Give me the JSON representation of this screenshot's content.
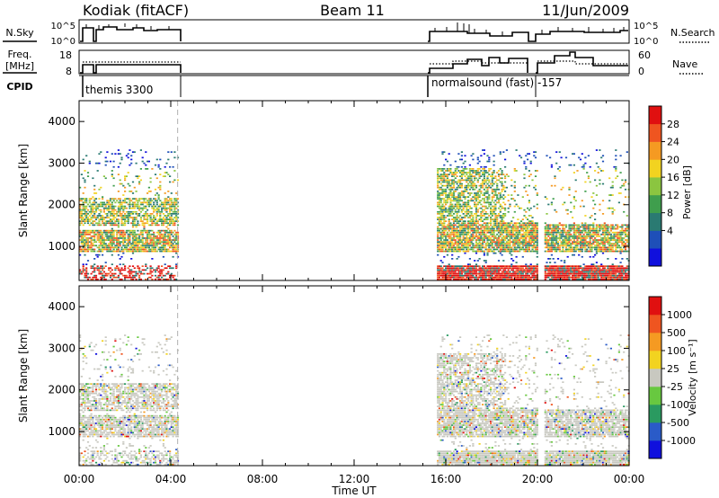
{
  "header": {
    "station": "Kodiak (fitACF)",
    "beam": "Beam 11",
    "date": "11/Jun/2009"
  },
  "colors": {
    "scatter_gray": "#c8c8c0",
    "ground_red": "#e01010",
    "text": "#000000",
    "gap_dash": "#b0b0b0"
  },
  "top_panels": {
    "nsky": {
      "left_label": "N.Sky",
      "left_ticks": [
        "10^5",
        "10^0"
      ],
      "right_ticks": [
        "10^5",
        "10^0"
      ],
      "right_label": "N.Search"
    },
    "freq": {
      "left_label_1": "Freq.",
      "left_label_2": "[MHz]",
      "left_ticks": [
        "18",
        "8"
      ],
      "right_ticks": [
        "60",
        "0"
      ],
      "right_label": "Nave"
    },
    "cpid": {
      "label": "CPID",
      "programs": [
        "themis 3300",
        "normalsound (fast) -157"
      ]
    }
  },
  "chart_data": [
    {
      "type": "heatmap",
      "title": "",
      "xlabel": "Time UT",
      "ylabel": "Slant Range [km]",
      "x_ticks": [
        "00:00",
        "04:00",
        "08:00",
        "12:00",
        "16:00",
        "20:00",
        "00:00"
      ],
      "xlim_hours": [
        0,
        24
      ],
      "y_ticks": [
        1000,
        2000,
        3000,
        4000
      ],
      "ylim": [
        180,
        4500
      ],
      "colorbar": {
        "label": "Power [dB]",
        "ticks": [
          "28",
          "24",
          "20",
          "16",
          "12",
          "8",
          "4"
        ],
        "colors": [
          "#1010dd",
          "#1e4fb8",
          "#2a7a72",
          "#3f9e4d",
          "#8bc540",
          "#f2d320",
          "#f59a22",
          "#ef5520",
          "#e01010"
        ]
      },
      "data_intervals_hours": [
        [
          0,
          4.3
        ],
        [
          15.6,
          20.0
        ],
        [
          20.3,
          24
        ]
      ],
      "echo_bands_km": [
        {
          "hours": [
            0.0,
            4.3
          ],
          "range": [
            900,
            1300
          ]
        },
        {
          "hours": [
            0.5,
            4.3
          ],
          "range": [
            1500,
            2100
          ]
        },
        {
          "hours": [
            15.7,
            18.5
          ],
          "range": [
            1500,
            2800
          ]
        },
        {
          "hours": [
            16.5,
            24.0
          ],
          "range": [
            900,
            1500
          ]
        },
        {
          "hours": [
            15.6,
            24.0
          ],
          "range": [
            250,
            450
          ]
        }
      ]
    },
    {
      "type": "heatmap",
      "title": "",
      "xlabel": "Time UT",
      "ylabel": "Slant Range [km]",
      "x_ticks": [
        "00:00",
        "04:00",
        "08:00",
        "12:00",
        "16:00",
        "20:00",
        "00:00"
      ],
      "xlim_hours": [
        0,
        24
      ],
      "y_ticks": [
        1000,
        2000,
        3000,
        4000
      ],
      "ylim": [
        180,
        4500
      ],
      "colorbar": {
        "label": "Velocity [m s⁻¹]",
        "ticks": [
          "1000",
          "500",
          "100",
          "25",
          "-25",
          "-100",
          "-500",
          "-1000"
        ],
        "colors": [
          "#1010dd",
          "#2a5bc8",
          "#2a9a60",
          "#68c840",
          "#c8c8c0",
          "#f2d320",
          "#f59a22",
          "#ef5520",
          "#e01010"
        ]
      },
      "data_intervals_hours": [
        [
          0,
          4.3
        ],
        [
          15.6,
          20.0
        ],
        [
          20.3,
          24
        ]
      ]
    }
  ]
}
